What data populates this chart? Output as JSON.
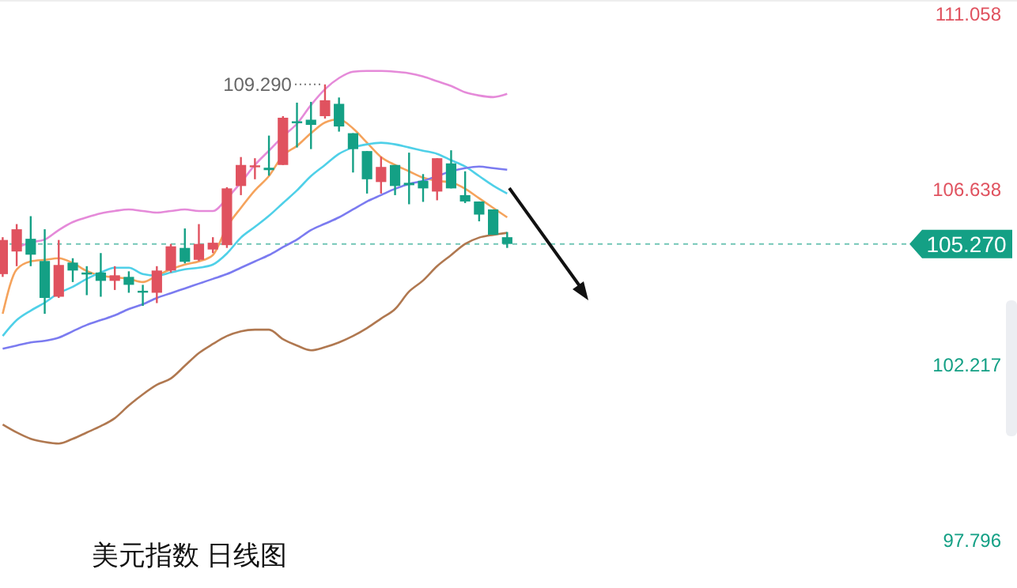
{
  "chart_data": {
    "type": "candlestick",
    "title": "美元指数 日线图",
    "categories": [
      null,
      null,
      null,
      null,
      null,
      null,
      null,
      null,
      null,
      null,
      null,
      null,
      null,
      null,
      null,
      null,
      null,
      null,
      null,
      null,
      null,
      null,
      null,
      null,
      null,
      null,
      null,
      null,
      null,
      null,
      null,
      null,
      null,
      null,
      null,
      null,
      null
    ],
    "ohlc": [
      [
        104.51,
        105.44,
        104.44,
        105.37
      ],
      [
        105.08,
        105.77,
        104.71,
        105.64
      ],
      [
        105.4,
        105.97,
        104.71,
        105.0
      ],
      [
        104.84,
        105.64,
        103.51,
        103.91
      ],
      [
        103.94,
        105.37,
        103.91,
        104.74
      ],
      [
        104.8,
        104.91,
        104.31,
        104.6
      ],
      [
        104.55,
        104.71,
        103.98,
        104.5
      ],
      [
        104.55,
        105.04,
        103.94,
        104.34
      ],
      [
        104.34,
        104.71,
        104.11,
        104.48
      ],
      [
        104.44,
        104.58,
        104.04,
        104.24
      ],
      [
        104.09,
        104.24,
        103.71,
        104.07
      ],
      [
        104.04,
        104.71,
        103.78,
        104.6
      ],
      [
        104.6,
        105.27,
        104.55,
        105.21
      ],
      [
        105.17,
        105.66,
        104.78,
        104.82
      ],
      [
        104.87,
        105.77,
        104.84,
        105.27
      ],
      [
        105.13,
        105.44,
        105.04,
        105.3
      ],
      [
        105.24,
        106.7,
        105.17,
        106.67
      ],
      [
        106.73,
        107.46,
        106.5,
        107.26
      ],
      [
        107.21,
        107.43,
        106.9,
        107.25
      ],
      [
        107.19,
        108.0,
        106.99,
        107.13
      ],
      [
        107.26,
        108.49,
        107.26,
        108.45
      ],
      [
        108.36,
        108.83,
        107.7,
        108.32
      ],
      [
        108.4,
        108.85,
        107.66,
        108.27
      ],
      [
        108.49,
        109.29,
        108.43,
        108.89
      ],
      [
        108.8,
        108.96,
        108.1,
        108.23
      ],
      [
        108.06,
        108.06,
        107.07,
        107.66
      ],
      [
        107.61,
        107.61,
        106.54,
        106.9
      ],
      [
        106.83,
        107.47,
        106.54,
        107.21
      ],
      [
        107.26,
        107.26,
        106.5,
        106.73
      ],
      [
        106.81,
        107.57,
        106.27,
        106.75
      ],
      [
        106.86,
        107.03,
        106.33,
        106.67
      ],
      [
        106.59,
        107.43,
        106.37,
        107.43
      ],
      [
        107.3,
        107.63,
        106.67,
        106.67
      ],
      [
        106.5,
        107.1,
        106.3,
        106.34
      ],
      [
        106.34,
        106.34,
        105.84,
        106.01
      ],
      [
        106.14,
        106.14,
        105.5,
        105.5
      ],
      [
        105.44,
        105.57,
        105.17,
        105.27
      ]
    ],
    "series": [
      {
        "type": "line",
        "color": "#f5a35c",
        "values": [
          103.51,
          104.63,
          104.83,
          104.87,
          104.91,
          104.79,
          104.59,
          104.47,
          104.43,
          104.39,
          104.31,
          104.47,
          104.63,
          104.75,
          104.83,
          104.99,
          105.7,
          106.18,
          106.62,
          106.98,
          107.5,
          107.74,
          108.06,
          108.33,
          108.41,
          108.18,
          107.82,
          107.46,
          107.26,
          107.1,
          106.94,
          106.86,
          106.82,
          106.66,
          106.42,
          106.18,
          105.94
        ]
      },
      {
        "type": "line",
        "color": "#4fd0e8",
        "values": [
          102.95,
          103.35,
          103.59,
          103.79,
          104.03,
          104.19,
          104.39,
          104.55,
          104.67,
          104.67,
          104.51,
          104.47,
          104.55,
          104.63,
          104.67,
          104.75,
          105.03,
          105.43,
          105.7,
          105.98,
          106.3,
          106.62,
          106.98,
          107.26,
          107.54,
          107.7,
          107.78,
          107.82,
          107.78,
          107.7,
          107.62,
          107.54,
          107.38,
          107.22,
          106.98,
          106.74,
          106.54
        ]
      },
      {
        "type": "line",
        "color": "#7b7bf0",
        "values": [
          102.63,
          102.71,
          102.79,
          102.83,
          102.91,
          103.07,
          103.23,
          103.35,
          103.47,
          103.63,
          103.75,
          103.91,
          104.03,
          104.15,
          104.27,
          104.39,
          104.51,
          104.67,
          104.83,
          104.99,
          105.19,
          105.38,
          105.62,
          105.78,
          105.94,
          106.14,
          106.34,
          106.5,
          106.66,
          106.78,
          106.86,
          106.98,
          107.1,
          107.18,
          107.22,
          107.18,
          107.14
        ]
      },
      {
        "type": "line",
        "color": "#e58ad9",
        "values": [
          null,
          105.18,
          105.31,
          105.38,
          105.62,
          105.82,
          105.94,
          106.04,
          106.1,
          106.14,
          106.1,
          106.06,
          106.1,
          106.14,
          106.1,
          106.1,
          106.42,
          106.82,
          107.26,
          107.62,
          107.98,
          108.3,
          108.77,
          109.17,
          109.45,
          109.61,
          109.63,
          109.63,
          109.61,
          109.57,
          109.49,
          109.37,
          109.25,
          109.09,
          109.01,
          108.97,
          109.05
        ]
      },
      {
        "type": "line",
        "color": "#b07850",
        "values": [
          100.72,
          100.52,
          100.36,
          100.28,
          100.24,
          100.36,
          100.52,
          100.68,
          100.88,
          101.2,
          101.48,
          101.72,
          101.88,
          102.2,
          102.52,
          102.75,
          102.95,
          103.07,
          103.11,
          103.11,
          102.87,
          102.71,
          102.59,
          102.67,
          102.79,
          102.95,
          103.15,
          103.39,
          103.63,
          104.07,
          104.35,
          104.71,
          104.99,
          105.27,
          105.43,
          105.5,
          105.55
        ]
      }
    ],
    "ylim": [
      97.796,
      111.058
    ],
    "yticks": [
      111.058,
      106.638,
      102.217,
      97.796
    ],
    "ref_lines": [
      {
        "axis": "y",
        "value": 105.27,
        "label": "105.270",
        "color": "#14a085",
        "line_style": "dashed"
      }
    ],
    "annotations": [
      "109.290"
    ]
  }
}
